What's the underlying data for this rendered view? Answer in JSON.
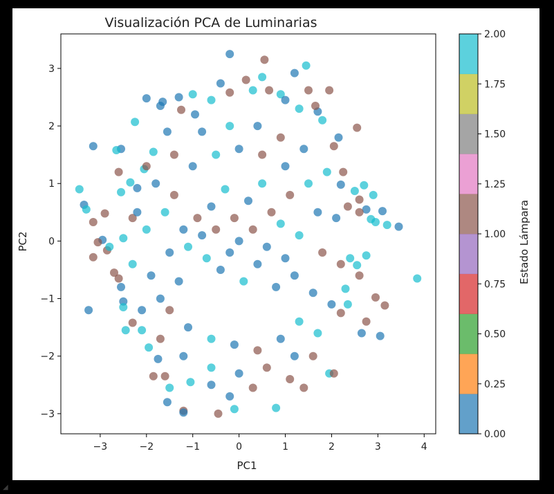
{
  "chart_data": {
    "type": "scatter",
    "title": "Visualización PCA de Luminarias",
    "xlabel": "PC1",
    "ylabel": "PC2",
    "xlim": [
      -3.85,
      4.25
    ],
    "ylim": [
      -3.35,
      3.6
    ],
    "xticks": [
      -3,
      -2,
      -1,
      0,
      1,
      2,
      3,
      4
    ],
    "yticks": [
      -3,
      -2,
      -1,
      0,
      1,
      2,
      3
    ],
    "grid": false,
    "colorbar": {
      "label": "Estado Lámpara",
      "range": [
        0.0,
        2.0
      ],
      "ticks": [
        "0.00",
        "0.25",
        "0.50",
        "0.75",
        "1.00",
        "1.25",
        "1.50",
        "1.75",
        "2.00"
      ],
      "bands": [
        "#1f77b4",
        "#ff7f0e",
        "#2ca02c",
        "#d62728",
        "#9467bd",
        "#8c564b",
        "#e377c2",
        "#7f7f7f",
        "#bcbd22",
        "#17becf"
      ]
    },
    "class_colors": {
      "0": "#1f77b4",
      "1": "#8c564b",
      "2": "#17becf"
    },
    "marker_alpha": 0.7,
    "points": [
      [
        -0.2,
        3.25,
        0
      ],
      [
        0.55,
        3.15,
        1
      ],
      [
        1.45,
        3.05,
        2
      ],
      [
        1.2,
        2.92,
        0
      ],
      [
        0.5,
        2.85,
        2
      ],
      [
        -0.4,
        2.74,
        0
      ],
      [
        0.15,
        2.8,
        1
      ],
      [
        -1.3,
        2.5,
        0
      ],
      [
        -2.0,
        2.48,
        0
      ],
      [
        -1.65,
        2.42,
        0
      ],
      [
        -1.0,
        2.55,
        2
      ],
      [
        0.9,
        2.55,
        2
      ],
      [
        1.5,
        2.62,
        1
      ],
      [
        1.95,
        2.62,
        1
      ],
      [
        -1.7,
        2.35,
        0
      ],
      [
        2.55,
        1.97,
        1
      ],
      [
        -2.25,
        2.07,
        2
      ],
      [
        -3.15,
        1.65,
        0
      ],
      [
        -2.55,
        1.6,
        0
      ],
      [
        -2.65,
        1.58,
        2
      ],
      [
        -3.45,
        0.9,
        2
      ],
      [
        -3.35,
        0.63,
        0
      ],
      [
        -3.3,
        0.55,
        2
      ],
      [
        -3.15,
        0.33,
        1
      ],
      [
        -2.9,
        0.48,
        1
      ],
      [
        -2.95,
        0.02,
        0
      ],
      [
        -3.05,
        -0.02,
        1
      ],
      [
        -2.85,
        -0.16,
        1
      ],
      [
        -3.15,
        -0.28,
        1
      ],
      [
        -2.6,
        -0.65,
        1
      ],
      [
        -2.55,
        -0.8,
        0
      ],
      [
        -2.5,
        -1.05,
        0
      ],
      [
        -3.25,
        -1.2,
        0
      ],
      [
        -2.5,
        -1.15,
        2
      ],
      [
        -2.3,
        -1.42,
        1
      ],
      [
        -2.1,
        -1.55,
        2
      ],
      [
        -1.95,
        -1.85,
        2
      ],
      [
        -1.75,
        -2.05,
        0
      ],
      [
        -1.6,
        -2.35,
        1
      ],
      [
        -1.5,
        -2.55,
        2
      ],
      [
        -1.55,
        -2.8,
        0
      ],
      [
        -1.2,
        -2.95,
        1
      ],
      [
        -1.2,
        -2.98,
        0
      ],
      [
        -0.45,
        -3.0,
        1
      ],
      [
        -0.1,
        -2.92,
        2
      ],
      [
        0.8,
        -2.9,
        2
      ],
      [
        -0.2,
        -2.7,
        0
      ],
      [
        1.4,
        -2.55,
        1
      ],
      [
        1.95,
        -2.3,
        2
      ],
      [
        2.05,
        -2.3,
        1
      ],
      [
        2.65,
        -1.6,
        0
      ],
      [
        3.05,
        -1.65,
        0
      ],
      [
        2.75,
        -1.4,
        1
      ],
      [
        3.15,
        -1.12,
        1
      ],
      [
        2.95,
        -0.98,
        1
      ],
      [
        3.85,
        -0.65,
        2
      ],
      [
        2.6,
        -0.6,
        1
      ],
      [
        2.55,
        -0.42,
        2
      ],
      [
        3.45,
        0.25,
        0
      ],
      [
        3.2,
        0.28,
        2
      ],
      [
        2.95,
        0.33,
        2
      ],
      [
        3.1,
        0.52,
        0
      ],
      [
        2.85,
        0.38,
        2
      ],
      [
        2.9,
        0.8,
        2
      ],
      [
        2.75,
        0.55,
        0
      ],
      [
        2.7,
        0.97,
        2
      ],
      [
        2.5,
        0.87,
        2
      ],
      [
        2.6,
        0.72,
        1
      ],
      [
        2.6,
        0.5,
        1
      ],
      [
        2.35,
        0.6,
        1
      ],
      [
        2.25,
        1.2,
        1
      ],
      [
        2.2,
        0.98,
        0
      ],
      [
        2.05,
        1.65,
        1
      ],
      [
        2.15,
        1.8,
        0
      ],
      [
        1.8,
        2.1,
        2
      ],
      [
        1.7,
        2.25,
        0
      ],
      [
        1.65,
        2.35,
        1
      ],
      [
        2.75,
        -0.25,
        2
      ],
      [
        2.4,
        -0.3,
        2
      ],
      [
        2.3,
        -0.83,
        2
      ],
      [
        2.2,
        -1.25,
        1
      ],
      [
        2.35,
        -1.1,
        2
      ],
      [
        1.6,
        -2.0,
        1
      ],
      [
        1.1,
        -2.4,
        1
      ],
      [
        0.3,
        -2.55,
        1
      ],
      [
        -0.6,
        -2.5,
        0
      ],
      [
        -1.05,
        -2.45,
        2
      ],
      [
        -1.85,
        -2.35,
        1
      ],
      [
        -2.45,
        -1.55,
        2
      ],
      [
        -2.7,
        -0.55,
        1
      ],
      [
        -2.8,
        -0.1,
        2
      ],
      [
        -2.5,
        0.05,
        2
      ],
      [
        -2.3,
        0.4,
        1
      ],
      [
        -2.55,
        0.85,
        2
      ],
      [
        -2.6,
        1.2,
        1
      ],
      [
        -2.35,
        1.02,
        2
      ],
      [
        -2.2,
        0.92,
        0
      ],
      [
        -2.05,
        1.25,
        2
      ],
      [
        -1.85,
        1.55,
        2
      ],
      [
        -1.55,
        1.9,
        0
      ],
      [
        -1.25,
        2.28,
        1
      ],
      [
        -0.95,
        2.2,
        0
      ],
      [
        -0.6,
        2.45,
        2
      ],
      [
        -0.2,
        2.58,
        1
      ],
      [
        0.3,
        2.62,
        2
      ],
      [
        0.65,
        2.62,
        1
      ],
      [
        1.0,
        2.45,
        0
      ],
      [
        1.3,
        2.3,
        2
      ],
      [
        -1.2,
        0.2,
        0
      ],
      [
        -1.1,
        -0.1,
        2
      ],
      [
        -0.9,
        0.4,
        1
      ],
      [
        -0.8,
        0.1,
        0
      ],
      [
        -0.7,
        -0.3,
        2
      ],
      [
        -0.6,
        0.6,
        0
      ],
      [
        -0.5,
        0.2,
        1
      ],
      [
        -0.4,
        -0.5,
        0
      ],
      [
        -0.3,
        0.9,
        2
      ],
      [
        -0.2,
        -0.2,
        0
      ],
      [
        -0.1,
        0.4,
        1
      ],
      [
        0.0,
        0.0,
        0
      ],
      [
        0.1,
        -0.7,
        2
      ],
      [
        0.2,
        0.7,
        0
      ],
      [
        0.3,
        0.2,
        1
      ],
      [
        0.4,
        -0.4,
        0
      ],
      [
        0.5,
        1.0,
        2
      ],
      [
        0.6,
        -0.1,
        0
      ],
      [
        0.7,
        0.5,
        1
      ],
      [
        0.8,
        -0.8,
        0
      ],
      [
        0.9,
        0.3,
        2
      ],
      [
        1.0,
        -0.3,
        0
      ],
      [
        1.1,
        0.8,
        1
      ],
      [
        1.2,
        -0.6,
        0
      ],
      [
        1.3,
        0.1,
        2
      ],
      [
        -1.3,
        -0.7,
        0
      ],
      [
        -1.4,
        0.8,
        1
      ],
      [
        -1.5,
        -0.2,
        0
      ],
      [
        -1.6,
        0.5,
        2
      ],
      [
        -1.7,
        -1.0,
        0
      ],
      [
        -1.0,
        1.3,
        0
      ],
      [
        -0.5,
        1.5,
        2
      ],
      [
        0.0,
        1.6,
        0
      ],
      [
        0.5,
        1.5,
        1
      ],
      [
        1.0,
        1.3,
        0
      ],
      [
        1.5,
        1.0,
        2
      ],
      [
        1.7,
        0.5,
        0
      ],
      [
        1.8,
        -0.2,
        1
      ],
      [
        1.6,
        -0.9,
        0
      ],
      [
        1.3,
        -1.4,
        2
      ],
      [
        0.9,
        -1.7,
        0
      ],
      [
        0.4,
        -1.9,
        1
      ],
      [
        -0.1,
        -1.8,
        0
      ],
      [
        -0.6,
        -1.7,
        2
      ],
      [
        -1.1,
        -1.5,
        0
      ],
      [
        -1.5,
        -1.2,
        1
      ],
      [
        -1.9,
        -0.6,
        0
      ],
      [
        -2.0,
        0.2,
        2
      ],
      [
        -1.8,
        1.0,
        0
      ],
      [
        -1.4,
        1.5,
        1
      ],
      [
        -0.8,
        1.9,
        0
      ],
      [
        -0.2,
        2.0,
        2
      ],
      [
        0.4,
        2.0,
        0
      ],
      [
        0.9,
        1.8,
        1
      ],
      [
        1.4,
        1.6,
        0
      ],
      [
        1.9,
        1.2,
        2
      ],
      [
        2.1,
        0.4,
        0
      ],
      [
        2.2,
        -0.4,
        1
      ],
      [
        2.0,
        -1.1,
        0
      ],
      [
        1.7,
        -1.6,
        2
      ],
      [
        1.2,
        -2.0,
        0
      ],
      [
        0.6,
        -2.2,
        1
      ],
      [
        0.0,
        -2.3,
        0
      ],
      [
        -0.6,
        -2.2,
        2
      ],
      [
        -1.2,
        -2.0,
        0
      ],
      [
        -1.7,
        -1.7,
        1
      ],
      [
        -2.1,
        -1.2,
        0
      ],
      [
        -2.3,
        -0.4,
        2
      ],
      [
        -2.2,
        0.5,
        0
      ],
      [
        -2.0,
        1.3,
        1
      ]
    ]
  }
}
